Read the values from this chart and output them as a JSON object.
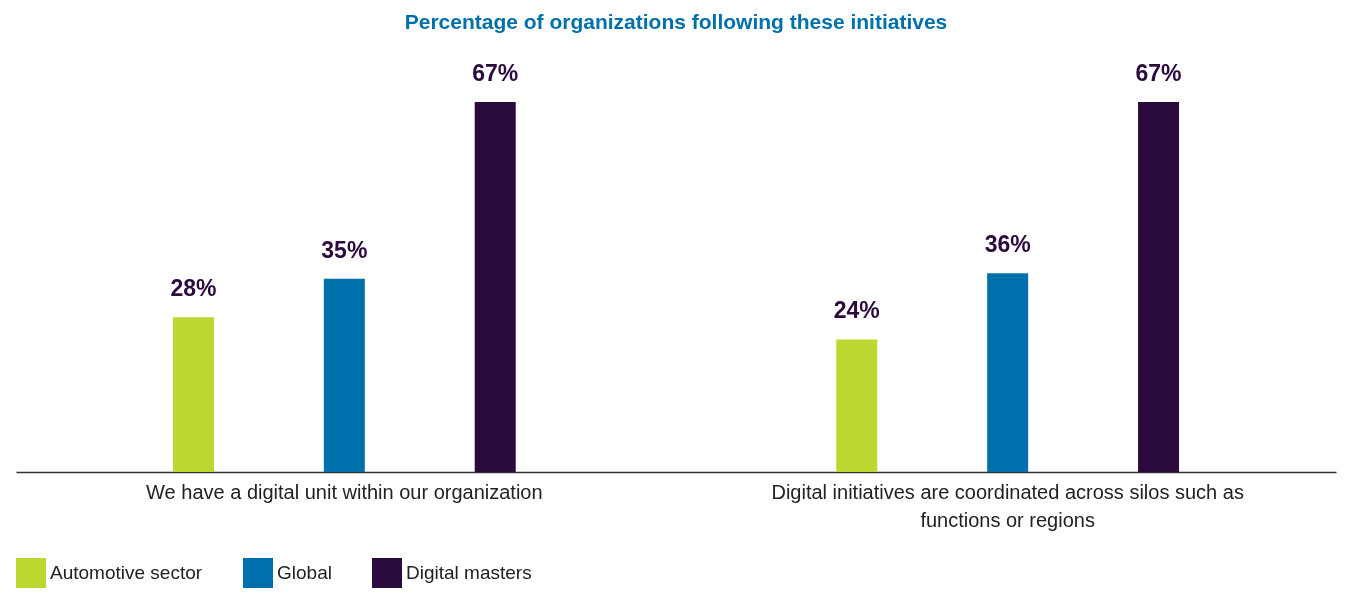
{
  "chart_data": {
    "type": "bar",
    "title": "Percentage of organizations following these initiatives",
    "categories": [
      "We have a digital unit within our organization",
      "Digital initiatives are coordinated across silos such as functions or regions"
    ],
    "series": [
      {
        "name": "Automotive sector",
        "color": "#bed730",
        "values": [
          28,
          24
        ],
        "value_labels": [
          "28%",
          "24%"
        ]
      },
      {
        "name": "Global",
        "color": "#0070ad",
        "values": [
          35,
          36
        ],
        "value_labels": [
          "35%",
          "36%"
        ]
      },
      {
        "name": "Digital masters",
        "color": "#2b0a3d",
        "values": [
          67,
          67
        ],
        "value_labels": [
          "67%",
          "67%"
        ]
      }
    ],
    "legend": "bottom"
  }
}
